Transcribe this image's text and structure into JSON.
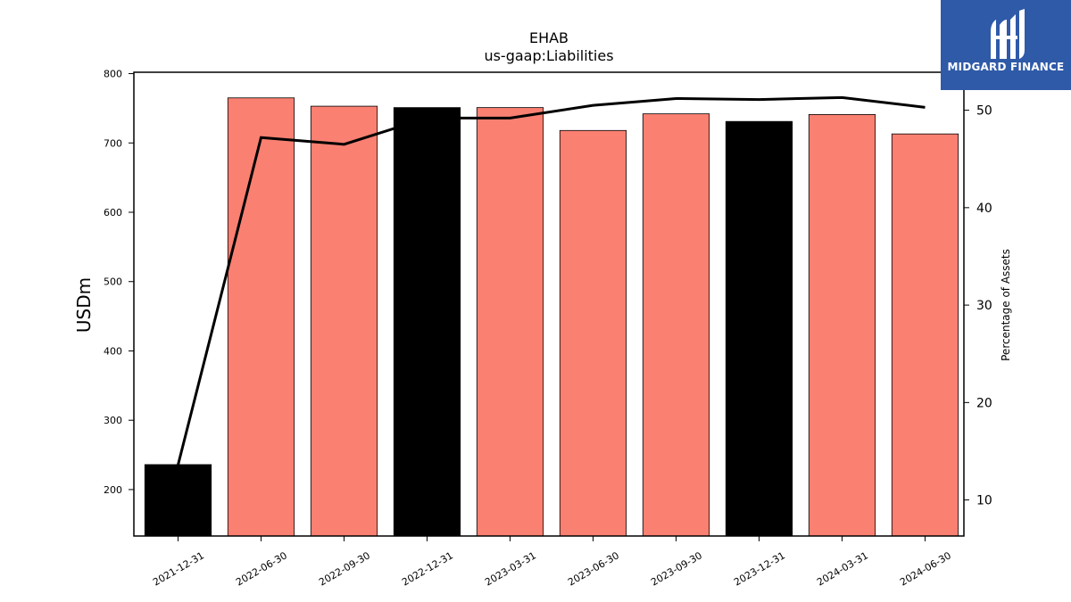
{
  "chart_data": {
    "type": "bar+line",
    "title": "EHAB",
    "subtitle": "us-gaap:Liabilities",
    "ylabel": "USDm",
    "y2label": "Percentage of Assets",
    "categories": [
      "2021-12-31",
      "2022-06-30",
      "2022-09-30",
      "2022-12-31",
      "2023-03-31",
      "2023-06-30",
      "2023-09-30",
      "2023-12-31",
      "2024-03-31",
      "2024-06-30"
    ],
    "bars": {
      "values": [
        236,
        765,
        753,
        751,
        751,
        718,
        742,
        731,
        741,
        713
      ],
      "colors": [
        "#000000",
        "#fa8072",
        "#fa8072",
        "#000000",
        "#fa8072",
        "#fa8072",
        "#fa8072",
        "#000000",
        "#fa8072",
        "#fa8072"
      ]
    },
    "line": {
      "values": [
        13.6,
        47.2,
        46.5,
        49.2,
        49.2,
        50.5,
        51.2,
        51.1,
        51.3,
        50.3
      ],
      "color": "#000000"
    },
    "ylim": [
      133,
      802
    ],
    "y2lim": [
      6.3,
      53.9
    ],
    "yticks": [
      200,
      300,
      400,
      500,
      600,
      700,
      800
    ],
    "y2ticks": [
      10,
      20,
      30,
      40,
      50
    ],
    "grid": false,
    "legend": "none"
  },
  "logo": {
    "text": "MIDGARD FINANCE",
    "background": "#2f5aa8"
  }
}
